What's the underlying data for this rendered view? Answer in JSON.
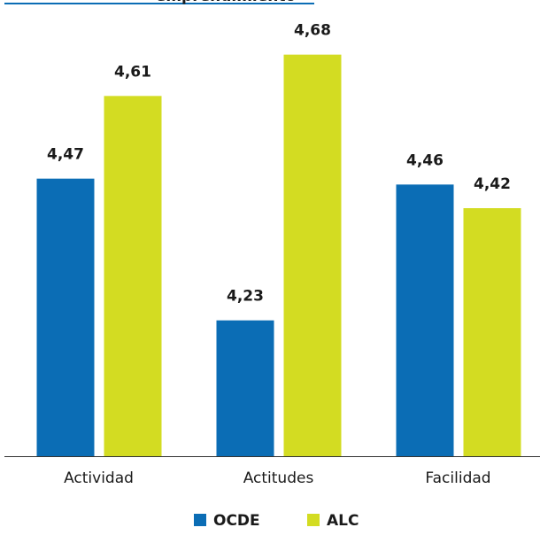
{
  "chart_data": {
    "type": "bar",
    "title": "emprendimiento",
    "categories": [
      "Actividad",
      "Actitudes",
      "Facilidad"
    ],
    "series": [
      {
        "name": "OCDE",
        "color": "#0b6db5",
        "values": [
          4.47,
          4.23,
          4.46
        ],
        "value_labels": [
          "4,47",
          "4,23",
          "4,46"
        ]
      },
      {
        "name": "ALC",
        "color": "#d3dc22",
        "values": [
          4.61,
          4.68,
          4.42
        ],
        "value_labels": [
          "4,61",
          "4,68",
          "4,42"
        ]
      }
    ],
    "ylim": [
      4,
      4.75
    ]
  }
}
